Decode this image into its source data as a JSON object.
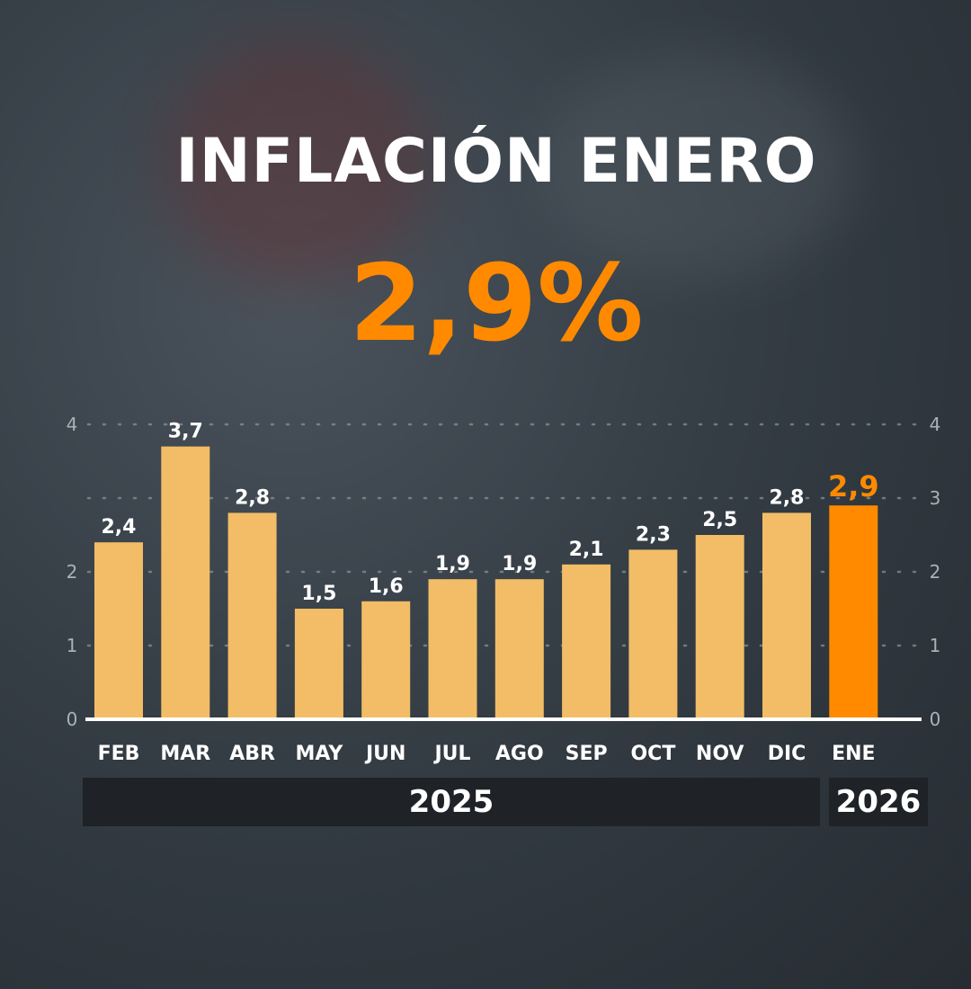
{
  "header": {
    "title": "INFLACIÓN ENERO",
    "headline_value": "2,9%"
  },
  "colors": {
    "bar": "#f2bd66",
    "highlight": "#ff8a00",
    "grid": "#8d959c",
    "axis": "#ffffff"
  },
  "chart_data": {
    "type": "bar",
    "title": "INFLACIÓN ENERO",
    "categories": [
      "FEB",
      "MAR",
      "ABR",
      "MAY",
      "JUN",
      "JUL",
      "AGO",
      "SEP",
      "OCT",
      "NOV",
      "DIC",
      "ENE"
    ],
    "values": [
      2.4,
      3.7,
      2.8,
      1.5,
      1.6,
      1.9,
      1.9,
      2.1,
      2.3,
      2.5,
      2.8,
      2.9
    ],
    "value_labels": [
      "2,4",
      "3,7",
      "2,8",
      "1,5",
      "1,6",
      "1,9",
      "1,9",
      "2,1",
      "2,3",
      "2,5",
      "2,8",
      "2,9"
    ],
    "highlight_index": 11,
    "ylim": [
      0,
      4
    ],
    "left_ticks": [
      "0",
      "1",
      "2",
      "4"
    ],
    "left_tick_values": [
      0,
      1,
      2,
      4
    ],
    "right_ticks": [
      "0",
      "1",
      "2",
      "3",
      "4"
    ],
    "right_tick_values": [
      0,
      1,
      2,
      3,
      4
    ],
    "grid": true,
    "year_groups": [
      {
        "label": "2025",
        "count": 11
      },
      {
        "label": "2026",
        "count": 1
      }
    ],
    "xlabel": "",
    "ylabel": ""
  }
}
